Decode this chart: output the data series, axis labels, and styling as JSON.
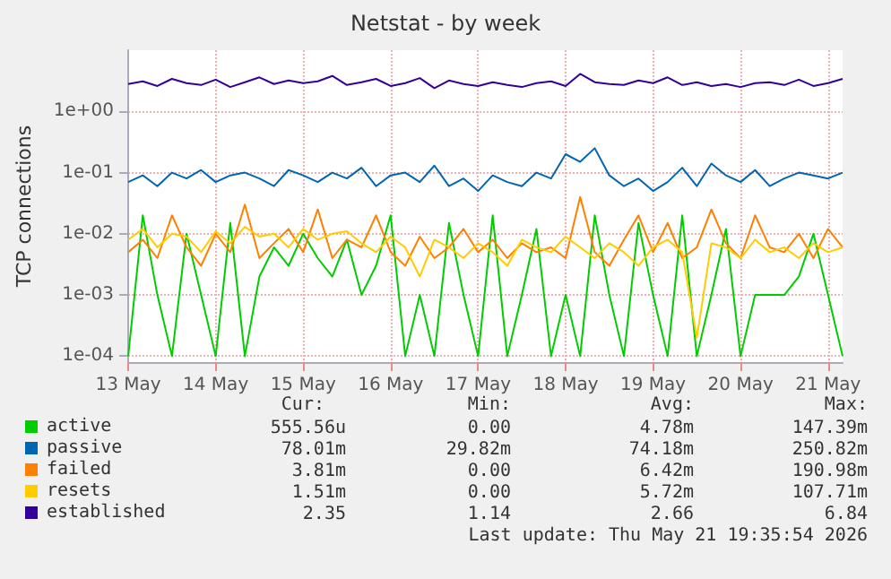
{
  "chart_data": {
    "type": "line",
    "title": "Netstat - by week",
    "ylabel": "TCP connections",
    "log": "y",
    "grid": true,
    "legend": "bottom",
    "marker": "none",
    "line_style": "solid",
    "xlim": [
      "2026-05-13T00:00",
      "2026-05-21T04:00"
    ],
    "xticks": [
      {
        "value": "2026-05-13",
        "label": "13 May"
      },
      {
        "value": "2026-05-14",
        "label": "14 May"
      },
      {
        "value": "2026-05-15",
        "label": "15 May"
      },
      {
        "value": "2026-05-16",
        "label": "16 May"
      },
      {
        "value": "2026-05-17",
        "label": "17 May"
      },
      {
        "value": "2026-05-18",
        "label": "18 May"
      },
      {
        "value": "2026-05-19",
        "label": "19 May"
      },
      {
        "value": "2026-05-20",
        "label": "20 May"
      },
      {
        "value": "2026-05-21",
        "label": "21 May"
      }
    ],
    "ylim": [
      8e-05,
      10
    ],
    "yticks": [
      {
        "value": 0.0001,
        "label": "1e-04"
      },
      {
        "value": 0.001,
        "label": "1e-03"
      },
      {
        "value": 0.01,
        "label": "1e-02"
      },
      {
        "value": 0.1,
        "label": "1e-01"
      },
      {
        "value": 1,
        "label": "1e+00"
      }
    ],
    "x": [
      "2026-05-13T00:00",
      "2026-05-13T04:00",
      "2026-05-13T08:00",
      "2026-05-13T12:00",
      "2026-05-13T16:00",
      "2026-05-13T20:00",
      "2026-05-14T00:00",
      "2026-05-14T04:00",
      "2026-05-14T08:00",
      "2026-05-14T12:00",
      "2026-05-14T16:00",
      "2026-05-14T20:00",
      "2026-05-15T00:00",
      "2026-05-15T04:00",
      "2026-05-15T08:00",
      "2026-05-15T12:00",
      "2026-05-15T16:00",
      "2026-05-15T20:00",
      "2026-05-16T00:00",
      "2026-05-16T04:00",
      "2026-05-16T08:00",
      "2026-05-16T12:00",
      "2026-05-16T16:00",
      "2026-05-16T20:00",
      "2026-05-17T00:00",
      "2026-05-17T04:00",
      "2026-05-17T08:00",
      "2026-05-17T12:00",
      "2026-05-17T16:00",
      "2026-05-17T20:00",
      "2026-05-18T00:00",
      "2026-05-18T04:00",
      "2026-05-18T08:00",
      "2026-05-18T12:00",
      "2026-05-18T16:00",
      "2026-05-18T20:00",
      "2026-05-19T00:00",
      "2026-05-19T04:00",
      "2026-05-19T08:00",
      "2026-05-19T12:00",
      "2026-05-19T16:00",
      "2026-05-19T20:00",
      "2026-05-20T00:00",
      "2026-05-20T04:00",
      "2026-05-20T08:00",
      "2026-05-20T12:00",
      "2026-05-20T16:00",
      "2026-05-20T20:00",
      "2026-05-21T00:00",
      "2026-05-21T04:00"
    ],
    "series": [
      {
        "name": "active",
        "color": "#00cc00",
        "values": [
          0.0001,
          0.02,
          0.001,
          0.0001,
          0.01,
          0.001,
          0.0001,
          0.015,
          0.0001,
          0.002,
          0.006,
          0.003,
          0.01,
          0.004,
          0.002,
          0.008,
          0.001,
          0.003,
          0.02,
          0.0001,
          0.001,
          0.0001,
          0.015,
          0.001,
          0.0001,
          0.02,
          0.0001,
          0.001,
          0.012,
          0.0001,
          0.001,
          0.0001,
          0.02,
          0.001,
          0.0001,
          0.015,
          0.001,
          0.0001,
          0.02,
          0.0001,
          0.001,
          0.012,
          0.0001,
          0.001,
          0.001,
          0.001,
          0.002,
          0.01,
          0.001,
          0.0001
        ]
      },
      {
        "name": "passive",
        "color": "#0066b3",
        "values": [
          0.07,
          0.09,
          0.06,
          0.1,
          0.08,
          0.11,
          0.07,
          0.09,
          0.1,
          0.08,
          0.06,
          0.11,
          0.09,
          0.07,
          0.1,
          0.08,
          0.12,
          0.06,
          0.09,
          0.1,
          0.07,
          0.13,
          0.06,
          0.08,
          0.05,
          0.09,
          0.07,
          0.06,
          0.1,
          0.08,
          0.2,
          0.15,
          0.25,
          0.09,
          0.06,
          0.08,
          0.05,
          0.07,
          0.12,
          0.06,
          0.14,
          0.09,
          0.07,
          0.11,
          0.06,
          0.08,
          0.1,
          0.09,
          0.08,
          0.1
        ]
      },
      {
        "name": "failed",
        "color": "#ff8000",
        "values": [
          0.005,
          0.008,
          0.004,
          0.02,
          0.006,
          0.003,
          0.01,
          0.005,
          0.03,
          0.004,
          0.007,
          0.012,
          0.005,
          0.025,
          0.004,
          0.008,
          0.006,
          0.02,
          0.005,
          0.003,
          0.009,
          0.004,
          0.006,
          0.012,
          0.005,
          0.008,
          0.004,
          0.007,
          0.005,
          0.006,
          0.004,
          0.04,
          0.005,
          0.003,
          0.008,
          0.02,
          0.005,
          0.015,
          0.004,
          0.006,
          0.025,
          0.007,
          0.004,
          0.02,
          0.006,
          0.005,
          0.01,
          0.004,
          0.012,
          0.006
        ]
      },
      {
        "name": "resets",
        "color": "#ffcc00",
        "values": [
          0.008,
          0.012,
          0.006,
          0.01,
          0.009,
          0.005,
          0.011,
          0.007,
          0.013,
          0.009,
          0.01,
          0.006,
          0.012,
          0.008,
          0.01,
          0.011,
          0.007,
          0.005,
          0.009,
          0.006,
          0.002,
          0.008,
          0.006,
          0.004,
          0.007,
          0.005,
          0.003,
          0.008,
          0.006,
          0.005,
          0.009,
          0.006,
          0.004,
          0.007,
          0.005,
          0.003,
          0.006,
          0.008,
          0.005,
          0.0002,
          0.007,
          0.006,
          0.004,
          0.008,
          0.005,
          0.006,
          0.004,
          0.007,
          0.005,
          0.006
        ]
      },
      {
        "name": "established",
        "color": "#330099",
        "values": [
          2.8,
          3.1,
          2.6,
          3.4,
          2.9,
          2.7,
          3.3,
          2.5,
          3.0,
          3.6,
          2.8,
          3.2,
          2.9,
          3.1,
          3.8,
          2.7,
          3.0,
          3.4,
          2.6,
          2.9,
          3.5,
          2.4,
          3.2,
          2.8,
          2.6,
          3.0,
          2.7,
          2.5,
          2.9,
          3.1,
          2.6,
          4.1,
          3.0,
          2.8,
          2.7,
          3.2,
          2.9,
          3.6,
          2.7,
          3.0,
          2.6,
          2.8,
          2.5,
          2.9,
          3.0,
          2.7,
          3.3,
          2.6,
          2.9,
          3.4
        ]
      }
    ],
    "annotations": [
      "Cur:",
      "Min:",
      "Avg:",
      "Max:",
      "555.56u",
      "0.00",
      "4.78m",
      "147.39m",
      "78.01m",
      "29.82m",
      "74.18m",
      "250.82m",
      "3.81m",
      "0.00",
      "6.42m",
      "190.98m",
      "1.51m",
      "0.00",
      "5.72m",
      "107.71m",
      "2.35",
      "1.14",
      "2.66",
      "6.84",
      "Last update: Thu May 21 19:35:54 2026"
    ]
  }
}
